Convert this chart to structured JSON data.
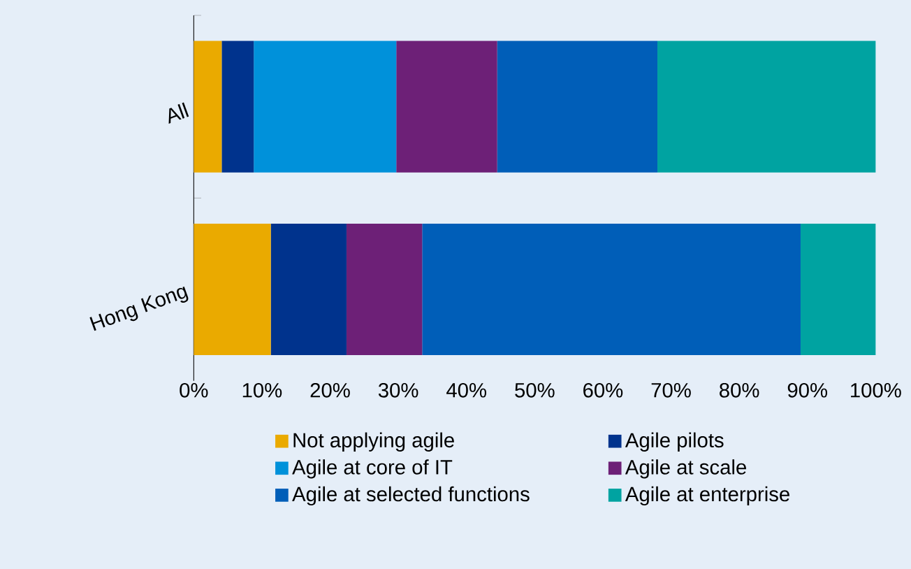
{
  "chart_data": {
    "type": "bar",
    "orientation": "horizontal",
    "stacked": true,
    "categories": [
      "All",
      "Hong Kong"
    ],
    "series": [
      {
        "name": "Not applying agile",
        "color": "#eaaa00",
        "values": [
          4.1,
          11.3
        ]
      },
      {
        "name": "Agile pilots",
        "color": "#00338d",
        "values": [
          4.7,
          11.1
        ]
      },
      {
        "name": "Agile at core of IT",
        "color": "#0091da",
        "values": [
          20.9,
          0
        ]
      },
      {
        "name": "Agile at scale",
        "color": "#6d2077",
        "values": [
          14.8,
          11.1
        ]
      },
      {
        "name": "Agile at selected functions",
        "color": "#005eb8",
        "values": [
          23.5,
          55.5
        ]
      },
      {
        "name": "Agile at enterprise",
        "color": "#00a3a1",
        "values": [
          32,
          11
        ]
      }
    ],
    "xlim": [
      0,
      100
    ],
    "xticks": [
      {
        "value": 0,
        "label": "0%"
      },
      {
        "value": 10,
        "label": "10%"
      },
      {
        "value": 20,
        "label": "20%"
      },
      {
        "value": 30,
        "label": "30%"
      },
      {
        "value": 40,
        "label": "40%"
      },
      {
        "value": 50,
        "label": "50%"
      },
      {
        "value": 60,
        "label": "60%"
      },
      {
        "value": 70,
        "label": "70%"
      },
      {
        "value": 80,
        "label": "80%"
      },
      {
        "value": 90,
        "label": "90%"
      },
      {
        "value": 100,
        "label": "100%"
      }
    ],
    "grid": false,
    "legend": "bottom"
  }
}
